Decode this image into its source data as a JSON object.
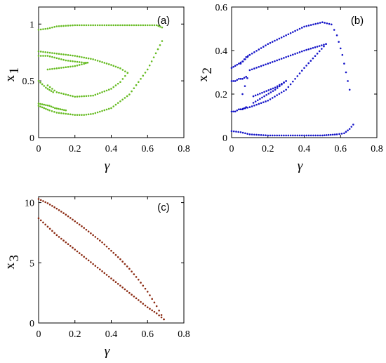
{
  "chart_data": [
    {
      "type": "scatter",
      "panel_label": "(a)",
      "xlabel": "γ",
      "ylabel": "x",
      "ylabel_sub": "1",
      "xlim": [
        0,
        0.8
      ],
      "ylim": [
        0,
        1.15
      ],
      "xticks": [
        "0",
        "0.2",
        "0.4",
        "0.6",
        "0.8"
      ],
      "yticks": [
        "0",
        "0.5",
        "1"
      ],
      "xtick_values": [
        0,
        0.2,
        0.4,
        0.6,
        0.8
      ],
      "ytick_values": [
        0,
        0.5,
        1
      ],
      "marker_color": "#66bb22",
      "series": [
        {
          "x": [
            0,
            0.05,
            0.1,
            0.2,
            0.3,
            0.4,
            0.5,
            0.6,
            0.65,
            0.68
          ],
          "y": [
            0.95,
            0.96,
            0.98,
            0.99,
            0.99,
            0.99,
            0.99,
            0.99,
            0.99,
            0.97
          ]
        },
        {
          "x": [
            0,
            0.03,
            0.06,
            0.1,
            0.15,
            0.2,
            0.25,
            0.3,
            0.4,
            0.5,
            0.6,
            0.68
          ],
          "y": [
            0.28,
            0.26,
            0.24,
            0.22,
            0.21,
            0.2,
            0.2,
            0.21,
            0.26,
            0.38,
            0.6,
            0.85
          ]
        },
        {
          "x": [
            0,
            0.05,
            0.1,
            0.2,
            0.3,
            0.4,
            0.45,
            0.49
          ],
          "y": [
            0.76,
            0.75,
            0.74,
            0.72,
            0.69,
            0.64,
            0.61,
            0.57
          ]
        },
        {
          "x": [
            0.05,
            0.1,
            0.2,
            0.3,
            0.4,
            0.45,
            0.49
          ],
          "y": [
            0.46,
            0.4,
            0.36,
            0.37,
            0.43,
            0.49,
            0.57
          ]
        },
        {
          "x": [
            0,
            0.05,
            0.1,
            0.15,
            0.2,
            0.25,
            0.27
          ],
          "y": [
            0.72,
            0.72,
            0.7,
            0.68,
            0.67,
            0.66,
            0.66
          ]
        },
        {
          "x": [
            0.05,
            0.1,
            0.15,
            0.2,
            0.25,
            0.27
          ],
          "y": [
            0.6,
            0.61,
            0.62,
            0.63,
            0.65,
            0.66
          ]
        },
        {
          "x": [
            0,
            0.02,
            0.04,
            0.06,
            0.08
          ],
          "y": [
            0.5,
            0.47,
            0.44,
            0.42,
            0.4
          ]
        },
        {
          "x": [
            0,
            0.03,
            0.06,
            0.09,
            0.12,
            0.15
          ],
          "y": [
            0.3,
            0.29,
            0.28,
            0.26,
            0.25,
            0.24
          ]
        }
      ]
    },
    {
      "type": "scatter",
      "panel_label": "(b)",
      "xlabel": "γ",
      "ylabel": "x",
      "ylabel_sub": "2",
      "xlim": [
        0,
        0.8
      ],
      "ylim": [
        0,
        0.6
      ],
      "xticks": [
        "0",
        "0.2",
        "0.4",
        "0.6",
        "0.8"
      ],
      "yticks": [
        "0",
        "0.2",
        "0.4",
        "0.6"
      ],
      "xtick_values": [
        0,
        0.2,
        0.4,
        0.6,
        0.8
      ],
      "ytick_values": [
        0,
        0.2,
        0.4,
        0.6
      ],
      "marker_color": "#1515c8",
      "series": [
        {
          "x": [
            0.05,
            0.1,
            0.2,
            0.3,
            0.4,
            0.5,
            0.55,
            0.58,
            0.61,
            0.63,
            0.65
          ],
          "y": [
            0.34,
            0.38,
            0.43,
            0.47,
            0.51,
            0.53,
            0.52,
            0.47,
            0.38,
            0.3,
            0.22
          ]
        },
        {
          "x": [
            0,
            0.02,
            0.04,
            0.06,
            0.08,
            0.1
          ],
          "y": [
            0.32,
            0.33,
            0.34,
            0.35,
            0.37,
            0.38
          ]
        },
        {
          "x": [
            0.06,
            0.1,
            0.2,
            0.3,
            0.4,
            0.52
          ],
          "y": [
            0.2,
            0.31,
            0.34,
            0.37,
            0.4,
            0.43
          ]
        },
        {
          "x": [
            0.05,
            0.1,
            0.2,
            0.3,
            0.4,
            0.52
          ],
          "y": [
            0.13,
            0.14,
            0.17,
            0.22,
            0.32,
            0.43
          ]
        },
        {
          "x": [
            0.12,
            0.18,
            0.24,
            0.3
          ],
          "y": [
            0.19,
            0.21,
            0.23,
            0.26
          ]
        },
        {
          "x": [
            0.12,
            0.18,
            0.24,
            0.3
          ],
          "y": [
            0.16,
            0.19,
            0.22,
            0.26
          ]
        },
        {
          "x": [
            0,
            0.02,
            0.04,
            0.06,
            0.08
          ],
          "y": [
            0.26,
            0.26,
            0.27,
            0.27,
            0.28
          ]
        },
        {
          "x": [
            0,
            0.02,
            0.04,
            0.06,
            0.08
          ],
          "y": [
            0.12,
            0.12,
            0.13,
            0.13,
            0.14
          ]
        },
        {
          "x": [
            0,
            0.05,
            0.1,
            0.2,
            0.3,
            0.4,
            0.5,
            0.58,
            0.62,
            0.65,
            0.67
          ],
          "y": [
            0.03,
            0.025,
            0.015,
            0.01,
            0.01,
            0.01,
            0.01,
            0.015,
            0.02,
            0.04,
            0.06
          ]
        }
      ]
    },
    {
      "type": "scatter",
      "panel_label": "(c)",
      "xlabel": "γ",
      "ylabel": "x",
      "ylabel_sub": "3",
      "xlim": [
        0,
        0.8
      ],
      "ylim": [
        0,
        10.5
      ],
      "xticks": [
        "0",
        "0.2",
        "0.4",
        "0.6",
        "0.8"
      ],
      "yticks": [
        "0",
        "5",
        "10"
      ],
      "xtick_values": [
        0,
        0.2,
        0.4,
        0.6,
        0.8
      ],
      "ytick_values": [
        0,
        5,
        10
      ],
      "marker_color": "#8b2a12",
      "series": [
        {
          "x": [
            0,
            0.05,
            0.1,
            0.15,
            0.2,
            0.25,
            0.3,
            0.35,
            0.4,
            0.45,
            0.5,
            0.55,
            0.6,
            0.65,
            0.69
          ],
          "y": [
            10.3,
            9.95,
            9.5,
            9.0,
            8.45,
            7.9,
            7.3,
            6.7,
            6.0,
            5.3,
            4.5,
            3.6,
            2.6,
            1.4,
            0.3
          ]
        },
        {
          "x": [
            0,
            0.05,
            0.1,
            0.15,
            0.2,
            0.25,
            0.3,
            0.35,
            0.4,
            0.45,
            0.5,
            0.55,
            0.6,
            0.65,
            0.69
          ],
          "y": [
            8.7,
            8.0,
            7.3,
            6.7,
            6.1,
            5.5,
            4.9,
            4.3,
            3.7,
            3.1,
            2.5,
            1.9,
            1.3,
            0.8,
            0.3
          ]
        }
      ]
    }
  ]
}
